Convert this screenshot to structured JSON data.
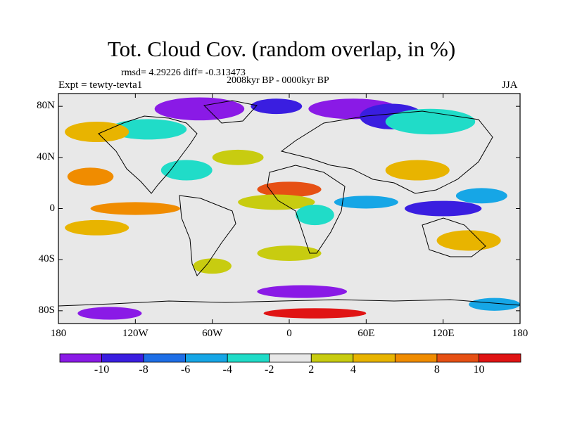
{
  "title": "Tot. Cloud Cov. (random overlap, in %)",
  "stats": "rmsd= 4.29226 diff= -0.313473",
  "period": "2008kyr BP - 0000kyr BP",
  "experiment": "Expt = tewty-tevta1",
  "season": "JJA",
  "map": {
    "projection": "cylindrical-equidistant",
    "lon_range": [
      -180,
      180
    ],
    "lat_range": [
      -90,
      90
    ],
    "lat_ticks": [
      {
        "lat": 80,
        "label": "80N"
      },
      {
        "lat": 40,
        "label": "40N"
      },
      {
        "lat": 0,
        "label": "0"
      },
      {
        "lat": -40,
        "label": "40S"
      },
      {
        "lat": -80,
        "label": "80S"
      }
    ],
    "lon_ticks": [
      {
        "lon": -180,
        "label": "180"
      },
      {
        "lon": -120,
        "label": "120W"
      },
      {
        "lon": -60,
        "label": "60W"
      },
      {
        "lon": 0,
        "label": "0"
      },
      {
        "lon": 60,
        "label": "60E"
      },
      {
        "lon": 120,
        "label": "120E"
      },
      {
        "lon": 180,
        "label": "180"
      }
    ],
    "background_color": "#e8e8e8"
  },
  "colorbar": {
    "levels": [
      -12,
      -10,
      -8,
      -6,
      -4,
      -2,
      2,
      4,
      6,
      8,
      10,
      12
    ],
    "colors": [
      "#8a1ae6",
      "#3a1ee0",
      "#1e6ee6",
      "#16a6e6",
      "#20dcc8",
      "#e8e8e8",
      "#c8cc10",
      "#e8b400",
      "#f08c00",
      "#e65014",
      "#e01414"
    ],
    "labels": [
      {
        "value": -10,
        "text": "-10"
      },
      {
        "value": -8,
        "text": "-8"
      },
      {
        "value": -6,
        "text": "-6"
      },
      {
        "value": -4,
        "text": "-4"
      },
      {
        "value": -2,
        "text": "-2"
      },
      {
        "value": 2,
        "text": "2"
      },
      {
        "value": 4,
        "text": "4"
      },
      {
        "value": 8,
        "text": "8"
      },
      {
        "value": 10,
        "text": "10"
      }
    ]
  },
  "anomaly_regions": [
    {
      "lon": -70,
      "lat": 78,
      "rlon": 35,
      "rlat": 9,
      "color": "#8a1ae6"
    },
    {
      "lon": -10,
      "lat": 80,
      "rlon": 20,
      "rlat": 6,
      "color": "#3a1ee0"
    },
    {
      "lon": 50,
      "lat": 78,
      "rlon": 35,
      "rlat": 8,
      "color": "#8a1ae6"
    },
    {
      "lon": 80,
      "lat": 72,
      "rlon": 25,
      "rlat": 10,
      "color": "#3a1ee0"
    },
    {
      "lon": 110,
      "lat": 68,
      "rlon": 35,
      "rlat": 10,
      "color": "#20dcc8"
    },
    {
      "lon": -110,
      "lat": 62,
      "rlon": 30,
      "rlat": 8,
      "color": "#20dcc8"
    },
    {
      "lon": -150,
      "lat": 60,
      "rlon": 25,
      "rlat": 8,
      "color": "#e8b400"
    },
    {
      "lon": -155,
      "lat": 25,
      "rlon": 18,
      "rlat": 7,
      "color": "#f08c00"
    },
    {
      "lon": -80,
      "lat": 30,
      "rlon": 20,
      "rlat": 8,
      "color": "#20dcc8"
    },
    {
      "lon": -40,
      "lat": 40,
      "rlon": 20,
      "rlat": 6,
      "color": "#c8cc10"
    },
    {
      "lon": 0,
      "lat": 15,
      "rlon": 25,
      "rlat": 6,
      "color": "#e65014"
    },
    {
      "lon": -10,
      "lat": 5,
      "rlon": 30,
      "rlat": 6,
      "color": "#c8cc10"
    },
    {
      "lon": 20,
      "lat": -5,
      "rlon": 15,
      "rlat": 8,
      "color": "#20dcc8"
    },
    {
      "lon": 60,
      "lat": 5,
      "rlon": 25,
      "rlat": 5,
      "color": "#16a6e6"
    },
    {
      "lon": 100,
      "lat": 30,
      "rlon": 25,
      "rlat": 8,
      "color": "#e8b400"
    },
    {
      "lon": 120,
      "lat": 0,
      "rlon": 30,
      "rlat": 6,
      "color": "#3a1ee0"
    },
    {
      "lon": 150,
      "lat": 10,
      "rlon": 20,
      "rlat": 6,
      "color": "#16a6e6"
    },
    {
      "lon": 140,
      "lat": -25,
      "rlon": 25,
      "rlat": 8,
      "color": "#e8b400"
    },
    {
      "lon": -120,
      "lat": 0,
      "rlon": 35,
      "rlat": 5,
      "color": "#f08c00"
    },
    {
      "lon": -150,
      "lat": -15,
      "rlon": 25,
      "rlat": 6,
      "color": "#e8b400"
    },
    {
      "lon": -60,
      "lat": -45,
      "rlon": 15,
      "rlat": 6,
      "color": "#c8cc10"
    },
    {
      "lon": 0,
      "lat": -35,
      "rlon": 25,
      "rlat": 6,
      "color": "#c8cc10"
    },
    {
      "lon": 10,
      "lat": -65,
      "rlon": 35,
      "rlat": 5,
      "color": "#8a1ae6"
    },
    {
      "lon": -140,
      "lat": -82,
      "rlon": 25,
      "rlat": 5,
      "color": "#8a1ae6"
    },
    {
      "lon": 20,
      "lat": -82,
      "rlon": 40,
      "rlat": 4,
      "color": "#e01414"
    },
    {
      "lon": 160,
      "lat": -75,
      "rlon": 20,
      "rlat": 5,
      "color": "#16a6e6"
    }
  ]
}
